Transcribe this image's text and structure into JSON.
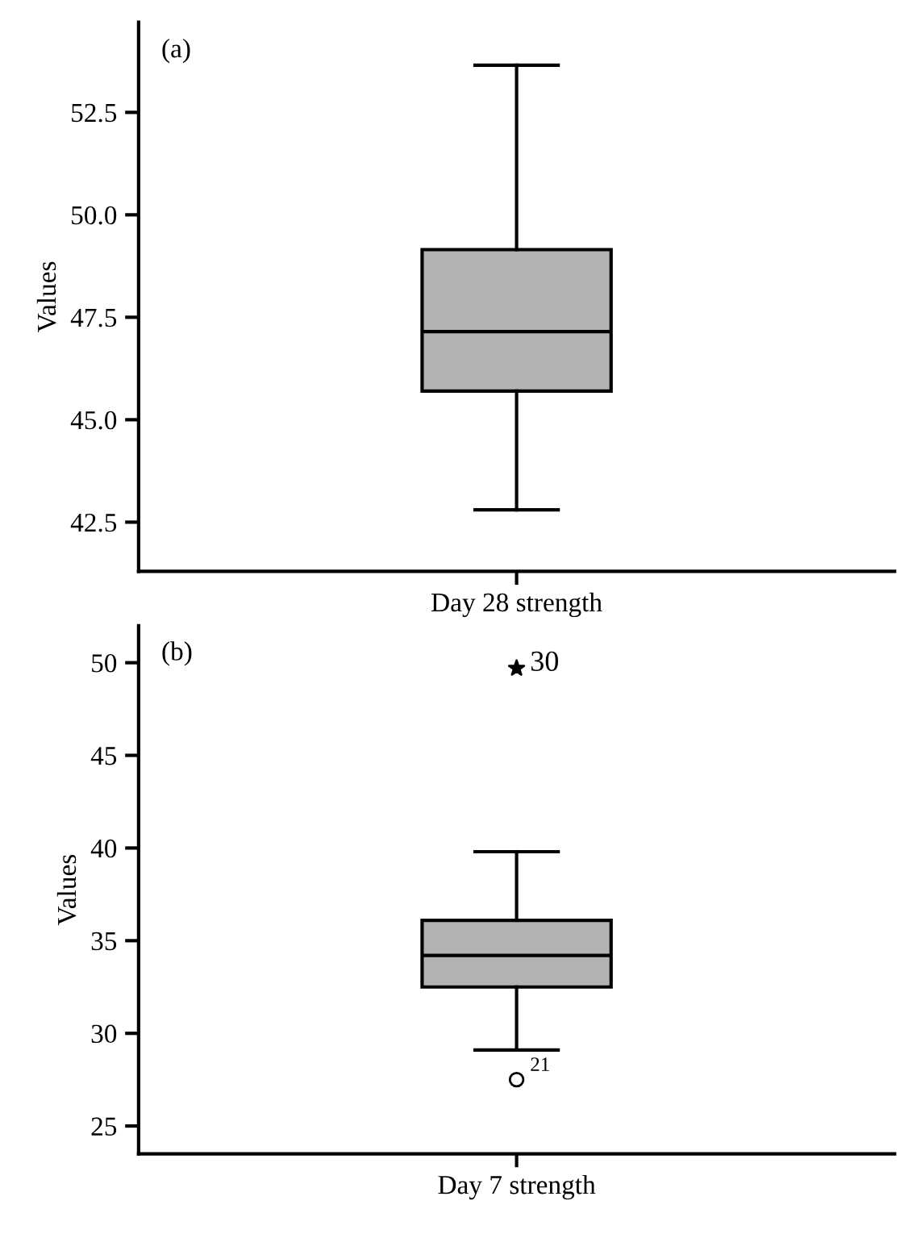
{
  "chart_data": [
    {
      "type": "box",
      "categories": [
        "Day 28 strength"
      ],
      "ylabel": "Values",
      "annotations": [
        "(a)"
      ],
      "series": [
        {
          "color": "#b3b3b3",
          "boxes": [
            {
              "low": 42.8,
              "q1": 45.7,
              "median": 47.15,
              "q3": 49.15,
              "high": 53.65
            }
          ]
        }
      ],
      "ylim": [
        41.3,
        54.7
      ],
      "yticks": [
        {
          "value": 42.5,
          "label": "42.5"
        },
        {
          "value": 45,
          "label": "45.0"
        },
        {
          "value": 47.5,
          "label": "47.5"
        },
        {
          "value": 50,
          "label": "50.0"
        },
        {
          "value": 52.5,
          "label": "52.5"
        }
      ],
      "grid": false,
      "legend": false
    },
    {
      "type": "box",
      "categories": [
        "Day 7 strength"
      ],
      "ylabel": "Values",
      "annotations": [
        "(b)",
        {
          "text": "21",
          "x": "Day 7 strength",
          "y": 27.5
        },
        {
          "text": "30",
          "x": "Day 7 strength",
          "y": 49.7
        }
      ],
      "series": [
        {
          "color": "#b3b3b3",
          "boxes": [
            {
              "low": 29.1,
              "q1": 32.5,
              "median": 34.2,
              "q3": 36.1,
              "high": 39.8
            }
          ]
        },
        {
          "type": "scatter",
          "x": [
            "Day 7 strength"
          ],
          "values": [
            27.5
          ],
          "marker": "circle",
          "color": "#000000"
        },
        {
          "type": "scatter",
          "x": [
            "Day 7 strength"
          ],
          "values": [
            49.7
          ],
          "marker": "star",
          "color": "#000000"
        }
      ],
      "ylim": [
        23.5,
        52
      ],
      "yticks": [
        25,
        30,
        35,
        40,
        45,
        50
      ],
      "grid": false,
      "legend": false
    }
  ]
}
